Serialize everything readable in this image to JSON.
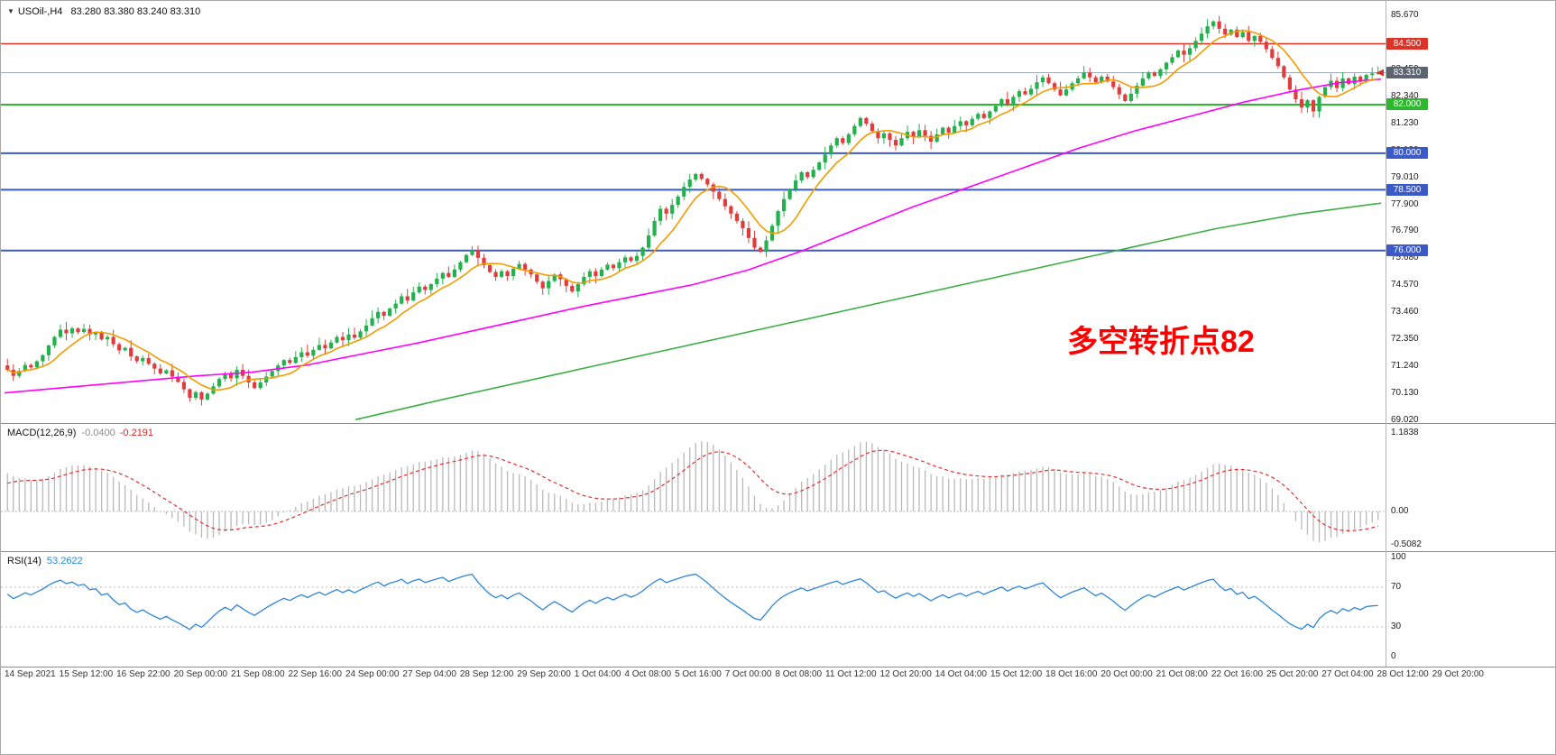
{
  "window": {
    "dropdown_icon": "▼",
    "symbol_tf": "USOil-,H4",
    "ohlc": "83.280 83.380 83.240 83.310"
  },
  "colors": {
    "candle_up": "#22b14c",
    "candle_down": "#e23b3b",
    "ma_fast": "#f59b00",
    "ma_mid": "#ff00ff",
    "ma_slow": "#3dae46",
    "bid_line": "#9aa4ae",
    "price_arrow": "#d93025",
    "macd_hist": "#b9b9b9",
    "macd_signal": "#e03131",
    "rsi_line": "#2f86d6",
    "level_dash": "#b8b8b8"
  },
  "main_chart": {
    "y_axis_labels": [
      "85.670",
      "84.560",
      "83.450",
      "82.340",
      "81.230",
      "80.120",
      "79.010",
      "77.900",
      "76.790",
      "75.680",
      "74.570",
      "73.460",
      "72.350",
      "71.240",
      "70.130",
      "69.020"
    ],
    "hlines": [
      {
        "value": "84.500",
        "price": 84.5,
        "color": "#dd3226",
        "width": 1.5
      },
      {
        "value": "82.000",
        "price": 82.0,
        "color": "#2eb82e",
        "width": 2
      },
      {
        "value": "80.000",
        "price": 80.0,
        "color": "#3c59c8",
        "width": 2
      },
      {
        "value": "78.500",
        "price": 78.5,
        "color": "#3c59c8",
        "width": 2
      },
      {
        "value": "76.000",
        "price": 76.0,
        "color": "#3c59c8",
        "width": 2
      }
    ],
    "current_price": {
      "value": "83.310",
      "price": 83.31,
      "badge_color": "#5c6470"
    },
    "annotation": {
      "text": "多空转折点82",
      "color": "#fe0000"
    }
  },
  "macd": {
    "label": "MACD(12,26,9)",
    "value_main": "-0.0400",
    "value_signal": "-0.2191",
    "axis": [
      "1.1838",
      "0.00",
      "-0.5082"
    ]
  },
  "rsi": {
    "label": "RSI(14)",
    "value": "53.2622",
    "axis": [
      "100",
      "70",
      "30",
      "0"
    ],
    "levels": [
      70,
      30
    ]
  },
  "time_axis": [
    "14 Sep 2021",
    "15 Sep 12:00",
    "16 Sep 22:00",
    "20 Sep 00:00",
    "21 Sep 08:00",
    "22 Sep 16:00",
    "24 Sep 00:00",
    "27 Sep 04:00",
    "28 Sep 12:00",
    "29 Sep 20:00",
    "1 Oct 04:00",
    "4 Oct 08:00",
    "5 Oct 16:00",
    "7 Oct 00:00",
    "8 Oct 08:00",
    "11 Oct 12:00",
    "12 Oct 20:00",
    "14 Oct 04:00",
    "15 Oct 12:00",
    "18 Oct 16:00",
    "20 Oct 00:00",
    "21 Oct 08:00",
    "22 Oct 16:00",
    "25 Oct 20:00",
    "27 Oct 04:00",
    "28 Oct 12:00",
    "29 Oct 20:00"
  ],
  "chart_data": {
    "type": "candlestick",
    "symbol": "USOil-",
    "timeframe": "H4",
    "ohlc_display": {
      "open": 83.28,
      "high": 83.38,
      "low": 83.24,
      "close": 83.31
    },
    "price_range": {
      "top_label": 85.67,
      "bottom_label": 69.02,
      "label_step": 1.11
    },
    "levels": [
      84.5,
      82.0,
      80.0,
      78.5,
      76.0
    ],
    "closes": [
      71.1,
      70.85,
      71.05,
      71.3,
      71.2,
      71.45,
      71.7,
      72.1,
      72.45,
      72.75,
      72.6,
      72.8,
      72.65,
      72.78,
      72.55,
      72.62,
      72.35,
      72.45,
      72.15,
      71.9,
      72.0,
      71.65,
      71.45,
      71.58,
      71.35,
      71.15,
      70.95,
      71.08,
      70.82,
      70.6,
      70.3,
      69.95,
      70.18,
      69.88,
      70.12,
      70.42,
      70.72,
      70.95,
      70.75,
      71.1,
      70.85,
      70.58,
      70.35,
      70.58,
      70.82,
      71.05,
      71.28,
      71.5,
      71.38,
      71.62,
      71.82,
      71.68,
      71.92,
      72.12,
      71.98,
      72.22,
      72.45,
      72.32,
      72.55,
      72.42,
      72.68,
      72.92,
      73.22,
      73.48,
      73.32,
      73.62,
      73.82,
      74.12,
      73.95,
      74.28,
      74.52,
      74.38,
      74.62,
      74.85,
      75.08,
      74.92,
      75.22,
      75.52,
      75.82,
      76.02,
      75.7,
      75.4,
      75.12,
      74.92,
      75.15,
      74.95,
      75.25,
      75.45,
      75.22,
      75.02,
      74.72,
      74.45,
      74.75,
      75.02,
      74.82,
      74.55,
      74.32,
      74.62,
      74.92,
      75.15,
      74.95,
      75.22,
      75.42,
      75.28,
      75.52,
      75.72,
      75.58,
      75.78,
      76.12,
      76.62,
      77.22,
      77.72,
      77.52,
      77.88,
      78.22,
      78.62,
      78.92,
      79.15,
      78.95,
      78.72,
      78.42,
      78.12,
      77.82,
      77.52,
      77.22,
      76.92,
      76.52,
      76.12,
      75.95,
      76.42,
      77.02,
      77.62,
      78.12,
      78.52,
      78.88,
      79.22,
      79.02,
      79.32,
      79.62,
      79.95,
      80.32,
      80.62,
      80.42,
      80.78,
      81.12,
      81.45,
      81.22,
      80.92,
      80.62,
      80.82,
      80.55,
      80.32,
      80.62,
      80.88,
      80.65,
      80.95,
      80.72,
      80.48,
      80.78,
      81.05,
      80.85,
      81.12,
      81.32,
      81.15,
      81.42,
      81.62,
      81.45,
      81.72,
      81.95,
      82.22,
      82.02,
      82.32,
      82.55,
      82.42,
      82.65,
      82.92,
      83.12,
      82.88,
      82.62,
      82.38,
      82.62,
      82.88,
      83.08,
      83.32,
      83.12,
      82.92,
      83.15,
      82.95,
      82.72,
      82.42,
      82.15,
      82.45,
      82.78,
      83.08,
      83.32,
      83.18,
      83.45,
      83.72,
      83.95,
      84.22,
      84.05,
      84.32,
      84.62,
      84.92,
      85.22,
      85.42,
      85.12,
      84.88,
      85.08,
      84.78,
      84.98,
      84.62,
      84.82,
      84.58,
      84.28,
      83.92,
      83.58,
      83.12,
      82.62,
      82.22,
      81.88,
      82.18,
      81.72,
      82.32,
      82.72,
      82.98,
      82.68,
      83.08,
      82.85,
      83.15,
      82.95,
      83.22,
      83.28,
      83.31
    ],
    "ma": {
      "fast_sma_period": 8,
      "magenta_points": [
        [
          0,
          70.15
        ],
        [
          0.05,
          70.4
        ],
        [
          0.1,
          70.65
        ],
        [
          0.14,
          70.85
        ],
        [
          0.18,
          71.0
        ],
        [
          0.22,
          71.3
        ],
        [
          0.26,
          71.75
        ],
        [
          0.3,
          72.2
        ],
        [
          0.34,
          72.7
        ],
        [
          0.38,
          73.2
        ],
        [
          0.42,
          73.7
        ],
        [
          0.46,
          74.15
        ],
        [
          0.5,
          74.6
        ],
        [
          0.54,
          75.2
        ],
        [
          0.58,
          76.0
        ],
        [
          0.62,
          76.9
        ],
        [
          0.66,
          77.8
        ],
        [
          0.7,
          78.6
        ],
        [
          0.74,
          79.4
        ],
        [
          0.78,
          80.2
        ],
        [
          0.82,
          80.9
        ],
        [
          0.86,
          81.5
        ],
        [
          0.9,
          82.1
        ],
        [
          0.94,
          82.6
        ],
        [
          0.97,
          82.9
        ],
        [
          1,
          83.05
        ]
      ],
      "green_points": [
        [
          0.255,
          69.05
        ],
        [
          0.32,
          69.9
        ],
        [
          0.4,
          70.9
        ],
        [
          0.48,
          71.9
        ],
        [
          0.56,
          72.9
        ],
        [
          0.64,
          73.9
        ],
        [
          0.72,
          74.9
        ],
        [
          0.8,
          75.9
        ],
        [
          0.88,
          76.9
        ],
        [
          0.94,
          77.5
        ],
        [
          1,
          77.95
        ]
      ]
    },
    "indicators": {
      "macd": {
        "fast": 12,
        "slow": 26,
        "signal": 9,
        "last_main": -0.04,
        "last_signal": -0.2191,
        "scale_max": 1.1838,
        "scale_min": -0.5082
      },
      "rsi": {
        "period": 14,
        "last": 53.2622,
        "levels": [
          70,
          30
        ]
      }
    }
  }
}
